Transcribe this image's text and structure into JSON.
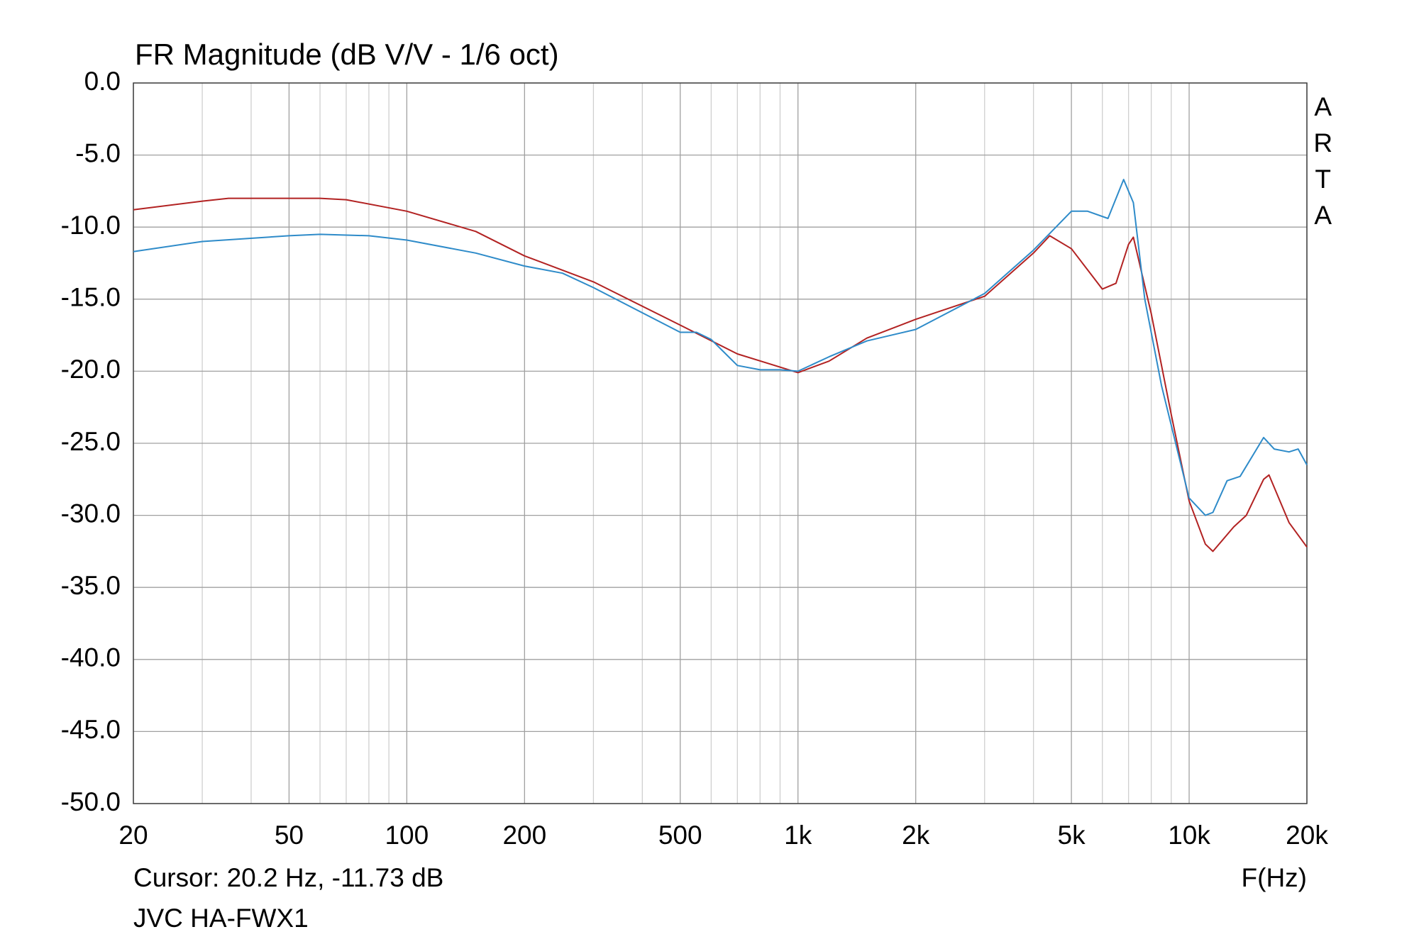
{
  "chart_data": {
    "type": "line",
    "title": "FR Magnitude (dB V/V - 1/6 oct)",
    "logo": "ARTA",
    "xlabel": "F(Hz)",
    "cursor": "Cursor: 20.2 Hz, -11.73 dB",
    "caption": "JVC HA-FWX1",
    "xscale": "log",
    "grid": true,
    "xlim": [
      20,
      20000
    ],
    "ylim": [
      -50,
      0
    ],
    "xticks": [
      20,
      50,
      100,
      200,
      500,
      {
        "value": 1000,
        "label": "1k"
      },
      {
        "value": 2000,
        "label": "2k"
      },
      {
        "value": 5000,
        "label": "5k"
      },
      {
        "value": 10000,
        "label": "10k"
      },
      {
        "value": 20000,
        "label": "20k"
      }
    ],
    "xminor_ticks": [
      30,
      40,
      60,
      70,
      80,
      90,
      300,
      400,
      600,
      700,
      800,
      900,
      3000,
      4000,
      6000,
      7000,
      8000,
      9000
    ],
    "yticks": [
      {
        "value": 0,
        "label": "0.0"
      },
      {
        "value": -5,
        "label": "-5.0"
      },
      {
        "value": -10,
        "label": "-10.0"
      },
      {
        "value": -15,
        "label": "-15.0"
      },
      {
        "value": -20,
        "label": "-20.0"
      },
      {
        "value": -25,
        "label": "-25.0"
      },
      {
        "value": -30,
        "label": "-30.0"
      },
      {
        "value": -35,
        "label": "-35.0"
      },
      {
        "value": -40,
        "label": "-40.0"
      },
      {
        "value": -45,
        "label": "-45.0"
      },
      {
        "value": -50,
        "label": "-50.0"
      }
    ],
    "series": [
      {
        "color": "#b22222",
        "x": [
          20,
          30,
          35,
          50,
          60,
          70,
          100,
          150,
          200,
          300,
          500,
          700,
          1000,
          1200,
          1500,
          2000,
          3000,
          4000,
          4400,
          5000,
          6000,
          6500,
          7000,
          7200,
          8000,
          9000,
          10000,
          11000,
          11500,
          13000,
          14000,
          15500,
          16000,
          18000,
          20000
        ],
        "values": [
          -8.8,
          -8.2,
          -8.0,
          -8.0,
          -8.0,
          -8.1,
          -8.9,
          -10.3,
          -12.0,
          -13.8,
          -16.8,
          -18.8,
          -20.1,
          -19.3,
          -17.7,
          -16.4,
          -14.8,
          -11.8,
          -10.6,
          -11.5,
          -14.3,
          -13.9,
          -11.2,
          -10.7,
          -16,
          -23,
          -29,
          -32,
          -32.5,
          -30.8,
          -30,
          -27.5,
          -27.2,
          -30.5,
          -32.2
        ]
      },
      {
        "color": "#2e8bc9",
        "x": [
          20,
          30,
          50,
          60,
          80,
          100,
          150,
          200,
          250,
          300,
          500,
          550,
          600,
          700,
          800,
          900,
          1000,
          1200,
          1500,
          2000,
          3000,
          4000,
          5000,
          5500,
          6200,
          6800,
          7200,
          7700,
          8500,
          10000,
          11000,
          11500,
          12500,
          13500,
          15500,
          16500,
          18000,
          19000,
          20000
        ],
        "values": [
          -11.7,
          -11,
          -10.6,
          -10.5,
          -10.6,
          -10.9,
          -11.8,
          -12.7,
          -13.2,
          -14.2,
          -17.3,
          -17.3,
          -17.8,
          -19.6,
          -19.9,
          -19.9,
          -20,
          -19.0,
          -17.9,
          -17.1,
          -14.6,
          -11.6,
          -8.9,
          -8.9,
          -9.4,
          -6.7,
          -8.3,
          -15,
          -21,
          -28.8,
          -30.0,
          -29.8,
          -27.6,
          -27.3,
          -24.6,
          -25.4,
          -25.6,
          -25.4,
          -26.5
        ]
      }
    ]
  }
}
